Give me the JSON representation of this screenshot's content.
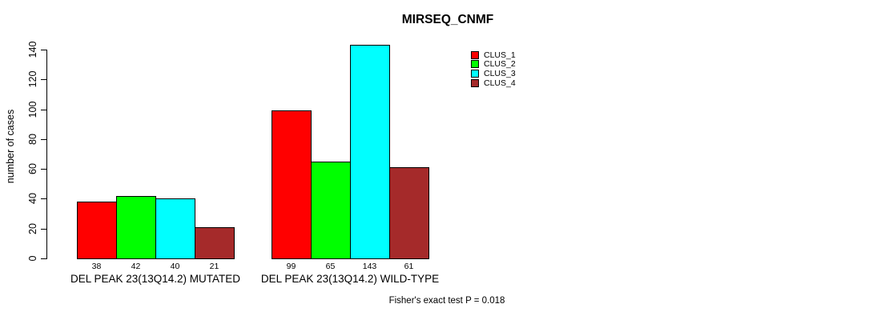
{
  "title": "MIRSEQ_CNMF",
  "ylabel": "number of cases",
  "footer": "Fisher's exact test P = 0.018",
  "legend": {
    "items": [
      {
        "label": "CLUS_1",
        "color": "#FF0000"
      },
      {
        "label": "CLUS_2",
        "color": "#00FF00"
      },
      {
        "label": "CLUS_3",
        "color": "#00FFFF"
      },
      {
        "label": "CLUS_4",
        "color": "#A52A2A"
      }
    ]
  },
  "chart_data": {
    "type": "bar",
    "title": "MIRSEQ_CNMF",
    "xlabel": "",
    "ylabel": "number of cases",
    "categories": [
      "DEL PEAK 23(13Q14.2) MUTATED",
      "DEL PEAK 23(13Q14.2) WILD-TYPE"
    ],
    "series": [
      {
        "name": "CLUS_1",
        "color": "#FF0000",
        "values": [
          38,
          99
        ]
      },
      {
        "name": "CLUS_2",
        "color": "#00FF00",
        "values": [
          42,
          65
        ]
      },
      {
        "name": "CLUS_3",
        "color": "#00FFFF",
        "values": [
          40,
          143
        ]
      },
      {
        "name": "CLUS_4",
        "color": "#A52A2A",
        "values": [
          21,
          61
        ]
      }
    ],
    "bar_value_labels": [
      [
        38,
        42,
        40,
        21
      ],
      [
        99,
        65,
        143,
        61
      ]
    ],
    "yticks": [
      0,
      20,
      40,
      60,
      80,
      100,
      120,
      140
    ],
    "ylim": [
      0,
      143
    ],
    "grid": false,
    "legend_position": "top-right",
    "annotation": "Fisher's exact test P = 0.018"
  }
}
